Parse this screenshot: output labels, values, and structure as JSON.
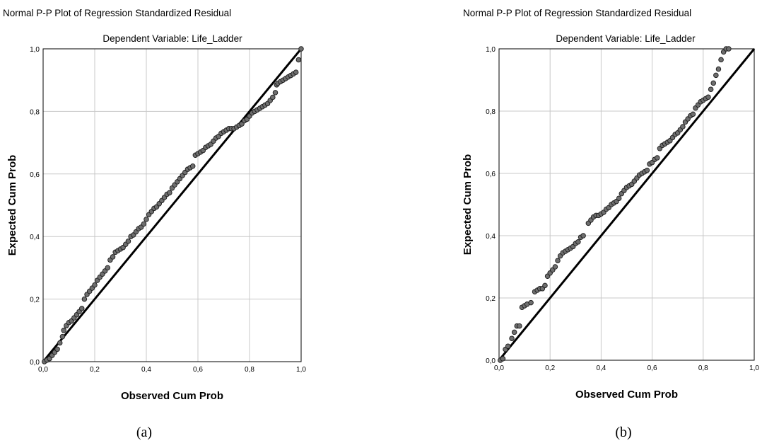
{
  "chart_data": [
    {
      "type": "scatter",
      "title": "Normal P-P Plot of Regression Standardized Residual",
      "subtitle": "Dependent Variable: Life_Ladder",
      "xlabel": "Observed Cum Prob",
      "ylabel": "Expected Cum Prob",
      "caption": "(a)",
      "xlim": [
        0,
        1
      ],
      "ylim": [
        0,
        1
      ],
      "xticks": [
        "0,0",
        "0,2",
        "0,4",
        "0,6",
        "0,8",
        "1,0"
      ],
      "yticks": [
        "0,0",
        "0,2",
        "0,4",
        "0,6",
        "0,8",
        "1,0"
      ],
      "grid": true,
      "reference_line": [
        [
          0,
          0
        ],
        [
          1,
          1
        ]
      ],
      "points": [
        [
          0.005,
          0.0
        ],
        [
          0.015,
          0.005
        ],
        [
          0.025,
          0.01
        ],
        [
          0.035,
          0.02
        ],
        [
          0.045,
          0.03
        ],
        [
          0.055,
          0.04
        ],
        [
          0.065,
          0.06
        ],
        [
          0.075,
          0.08
        ],
        [
          0.08,
          0.1
        ],
        [
          0.09,
          0.115
        ],
        [
          0.1,
          0.125
        ],
        [
          0.11,
          0.13
        ],
        [
          0.12,
          0.14
        ],
        [
          0.13,
          0.15
        ],
        [
          0.14,
          0.16
        ],
        [
          0.15,
          0.17
        ],
        [
          0.16,
          0.2
        ],
        [
          0.17,
          0.215
        ],
        [
          0.18,
          0.225
        ],
        [
          0.19,
          0.235
        ],
        [
          0.2,
          0.245
        ],
        [
          0.21,
          0.26
        ],
        [
          0.22,
          0.27
        ],
        [
          0.23,
          0.28
        ],
        [
          0.24,
          0.29
        ],
        [
          0.25,
          0.3
        ],
        [
          0.26,
          0.325
        ],
        [
          0.27,
          0.335
        ],
        [
          0.28,
          0.35
        ],
        [
          0.29,
          0.355
        ],
        [
          0.3,
          0.36
        ],
        [
          0.31,
          0.365
        ],
        [
          0.32,
          0.375
        ],
        [
          0.33,
          0.385
        ],
        [
          0.34,
          0.4
        ],
        [
          0.35,
          0.405
        ],
        [
          0.36,
          0.415
        ],
        [
          0.37,
          0.425
        ],
        [
          0.38,
          0.43
        ],
        [
          0.39,
          0.44
        ],
        [
          0.4,
          0.455
        ],
        [
          0.41,
          0.47
        ],
        [
          0.42,
          0.48
        ],
        [
          0.43,
          0.49
        ],
        [
          0.44,
          0.495
        ],
        [
          0.45,
          0.505
        ],
        [
          0.46,
          0.515
        ],
        [
          0.47,
          0.525
        ],
        [
          0.48,
          0.535
        ],
        [
          0.49,
          0.54
        ],
        [
          0.5,
          0.555
        ],
        [
          0.51,
          0.565
        ],
        [
          0.52,
          0.575
        ],
        [
          0.53,
          0.585
        ],
        [
          0.54,
          0.595
        ],
        [
          0.55,
          0.605
        ],
        [
          0.56,
          0.615
        ],
        [
          0.57,
          0.62
        ],
        [
          0.58,
          0.625
        ],
        [
          0.59,
          0.66
        ],
        [
          0.6,
          0.665
        ],
        [
          0.61,
          0.67
        ],
        [
          0.62,
          0.675
        ],
        [
          0.63,
          0.685
        ],
        [
          0.64,
          0.69
        ],
        [
          0.65,
          0.695
        ],
        [
          0.66,
          0.705
        ],
        [
          0.67,
          0.715
        ],
        [
          0.68,
          0.72
        ],
        [
          0.69,
          0.73
        ],
        [
          0.7,
          0.735
        ],
        [
          0.71,
          0.74
        ],
        [
          0.72,
          0.745
        ],
        [
          0.73,
          0.745
        ],
        [
          0.74,
          0.745
        ],
        [
          0.75,
          0.75
        ],
        [
          0.76,
          0.755
        ],
        [
          0.77,
          0.76
        ],
        [
          0.78,
          0.77
        ],
        [
          0.79,
          0.775
        ],
        [
          0.8,
          0.785
        ],
        [
          0.81,
          0.795
        ],
        [
          0.82,
          0.8
        ],
        [
          0.83,
          0.805
        ],
        [
          0.84,
          0.81
        ],
        [
          0.85,
          0.815
        ],
        [
          0.86,
          0.82
        ],
        [
          0.87,
          0.825
        ],
        [
          0.88,
          0.835
        ],
        [
          0.89,
          0.845
        ],
        [
          0.9,
          0.86
        ],
        [
          0.905,
          0.885
        ],
        [
          0.91,
          0.89
        ],
        [
          0.92,
          0.895
        ],
        [
          0.93,
          0.9
        ],
        [
          0.94,
          0.905
        ],
        [
          0.95,
          0.91
        ],
        [
          0.96,
          0.915
        ],
        [
          0.97,
          0.92
        ],
        [
          0.98,
          0.925
        ],
        [
          0.99,
          0.965
        ],
        [
          1.0,
          1.0
        ]
      ]
    },
    {
      "type": "scatter",
      "title": "Normal P-P Plot of Regression Standardized Residual",
      "subtitle": "Dependent Variable: Life_Ladder",
      "xlabel": "Observed Cum Prob",
      "ylabel": "Expected Cum Prob",
      "caption": "(b)",
      "xlim": [
        0,
        1
      ],
      "ylim": [
        0,
        1
      ],
      "xticks": [
        "0,0",
        "0,2",
        "0,4",
        "0,6",
        "0,8",
        "1,0"
      ],
      "yticks": [
        "0,0",
        "0,2",
        "0,4",
        "0,6",
        "0,8",
        "1,0"
      ],
      "grid": true,
      "reference_line": [
        [
          0,
          0
        ],
        [
          1,
          1
        ]
      ],
      "points": [
        [
          0.005,
          0.0
        ],
        [
          0.015,
          0.005
        ],
        [
          0.025,
          0.035
        ],
        [
          0.035,
          0.045
        ],
        [
          0.05,
          0.07
        ],
        [
          0.06,
          0.09
        ],
        [
          0.07,
          0.11
        ],
        [
          0.08,
          0.11
        ],
        [
          0.09,
          0.17
        ],
        [
          0.1,
          0.175
        ],
        [
          0.11,
          0.18
        ],
        [
          0.125,
          0.185
        ],
        [
          0.14,
          0.22
        ],
        [
          0.15,
          0.225
        ],
        [
          0.16,
          0.23
        ],
        [
          0.17,
          0.23
        ],
        [
          0.18,
          0.24
        ],
        [
          0.19,
          0.27
        ],
        [
          0.2,
          0.28
        ],
        [
          0.21,
          0.29
        ],
        [
          0.22,
          0.3
        ],
        [
          0.23,
          0.32
        ],
        [
          0.24,
          0.335
        ],
        [
          0.25,
          0.345
        ],
        [
          0.26,
          0.35
        ],
        [
          0.27,
          0.355
        ],
        [
          0.28,
          0.36
        ],
        [
          0.29,
          0.365
        ],
        [
          0.3,
          0.375
        ],
        [
          0.31,
          0.38
        ],
        [
          0.32,
          0.395
        ],
        [
          0.33,
          0.4
        ],
        [
          0.35,
          0.44
        ],
        [
          0.36,
          0.45
        ],
        [
          0.37,
          0.46
        ],
        [
          0.38,
          0.465
        ],
        [
          0.39,
          0.465
        ],
        [
          0.4,
          0.47
        ],
        [
          0.41,
          0.475
        ],
        [
          0.42,
          0.485
        ],
        [
          0.43,
          0.49
        ],
        [
          0.44,
          0.5
        ],
        [
          0.45,
          0.505
        ],
        [
          0.46,
          0.51
        ],
        [
          0.47,
          0.52
        ],
        [
          0.48,
          0.535
        ],
        [
          0.49,
          0.545
        ],
        [
          0.5,
          0.555
        ],
        [
          0.51,
          0.56
        ],
        [
          0.52,
          0.565
        ],
        [
          0.53,
          0.575
        ],
        [
          0.54,
          0.585
        ],
        [
          0.55,
          0.595
        ],
        [
          0.56,
          0.6
        ],
        [
          0.57,
          0.605
        ],
        [
          0.58,
          0.61
        ],
        [
          0.59,
          0.63
        ],
        [
          0.6,
          0.635
        ],
        [
          0.61,
          0.645
        ],
        [
          0.62,
          0.65
        ],
        [
          0.63,
          0.68
        ],
        [
          0.64,
          0.69
        ],
        [
          0.65,
          0.695
        ],
        [
          0.66,
          0.7
        ],
        [
          0.67,
          0.705
        ],
        [
          0.68,
          0.715
        ],
        [
          0.69,
          0.725
        ],
        [
          0.7,
          0.73
        ],
        [
          0.71,
          0.74
        ],
        [
          0.72,
          0.75
        ],
        [
          0.73,
          0.765
        ],
        [
          0.74,
          0.775
        ],
        [
          0.75,
          0.785
        ],
        [
          0.76,
          0.79
        ],
        [
          0.77,
          0.81
        ],
        [
          0.78,
          0.82
        ],
        [
          0.79,
          0.83
        ],
        [
          0.8,
          0.835
        ],
        [
          0.81,
          0.84
        ],
        [
          0.82,
          0.845
        ],
        [
          0.83,
          0.87
        ],
        [
          0.84,
          0.89
        ],
        [
          0.85,
          0.915
        ],
        [
          0.86,
          0.935
        ],
        [
          0.87,
          0.965
        ],
        [
          0.88,
          0.99
        ],
        [
          0.89,
          1.0
        ],
        [
          0.9,
          1.0
        ]
      ]
    }
  ]
}
